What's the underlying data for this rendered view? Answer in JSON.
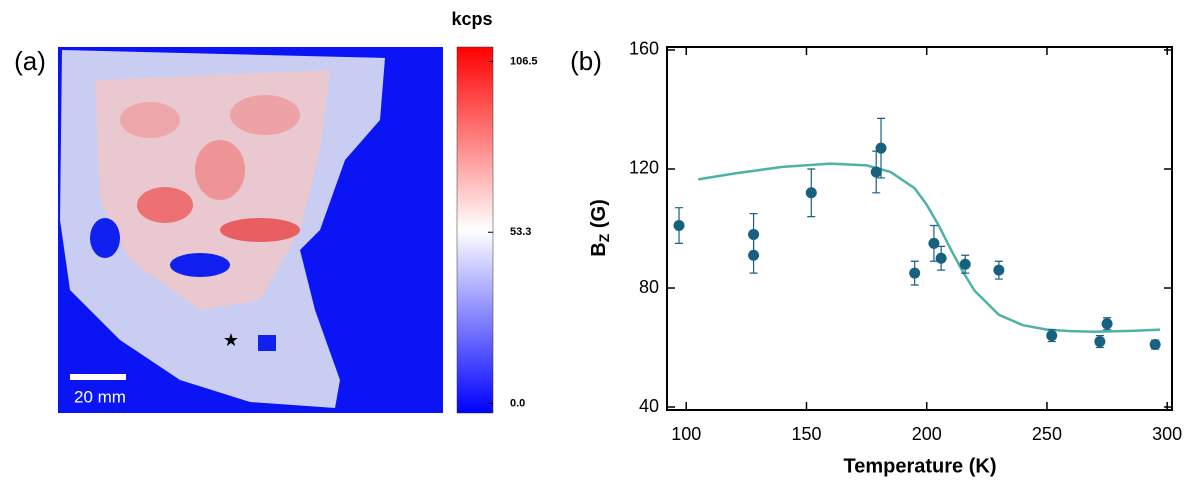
{
  "chart_data": [
    {
      "type": "image",
      "panel_label": "(a)",
      "colorbar_title": "kcps",
      "clim": [
        -3,
        111
      ],
      "colorbar_ticks": [
        106.5,
        53.3,
        {
          "value": 0,
          "label": "0.0"
        }
      ],
      "scalebar_label": "20 mm"
    },
    {
      "type": "scatter",
      "panel_label": "(b)",
      "xlabel": "Temperature (K)",
      "ylabel": {
        "main": "B",
        "sub": "Z",
        "rest": " (G)"
      },
      "xlim": [
        92,
        302
      ],
      "ylim": [
        39,
        161
      ],
      "xticks": [
        100,
        150,
        200,
        250,
        300
      ],
      "yticks": [
        40,
        80,
        120,
        160
      ],
      "color": "#17607e",
      "x": [
        97,
        128,
        128,
        152,
        179,
        181,
        195,
        203,
        206,
        216,
        230,
        252,
        272,
        275,
        295
      ],
      "values": [
        101,
        98,
        91,
        112,
        119,
        127,
        85,
        95,
        90,
        88,
        86,
        64,
        62,
        68,
        61
      ],
      "errors": [
        6,
        7,
        6,
        8,
        7,
        10,
        4,
        6,
        4,
        3,
        3,
        2,
        2,
        2,
        1.5
      ],
      "fit": {
        "color": "#4db3a5",
        "x": [
          105,
          120,
          140,
          160,
          175,
          185,
          195,
          200,
          205,
          210,
          215,
          220,
          230,
          240,
          250,
          260,
          270,
          285,
          297
        ],
        "values": [
          116.5,
          118.5,
          120.7,
          121.8,
          121.2,
          119,
          113.5,
          108,
          101,
          93,
          85.5,
          79,
          71,
          67.5,
          66,
          65.5,
          65.3,
          65.6,
          66
        ]
      }
    }
  ]
}
